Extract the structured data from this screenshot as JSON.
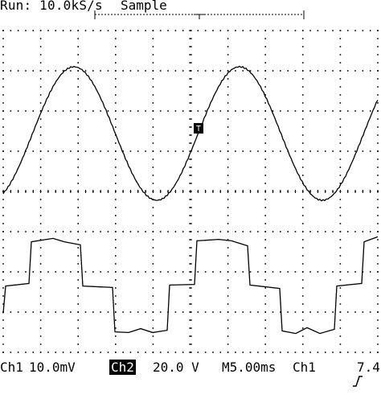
{
  "header": {
    "run_status": "Run: 10.0kS/s",
    "acquisition_mode": "Sample"
  },
  "footer": {
    "ch1_label": "Ch1",
    "ch1_scale": "10.0mV",
    "ch2_label": "Ch2",
    "ch2_scale": "20.0 V",
    "timebase": "M5.00ms",
    "trigger_source": "Ch1",
    "trigger_slope_icon": "rising-edge-icon",
    "trigger_level": "7.4"
  },
  "trigger_marker": {
    "label": "T"
  },
  "colors": {
    "trace": "#000000",
    "background": "#ffffff",
    "ch2_badge": "#000000"
  }
}
